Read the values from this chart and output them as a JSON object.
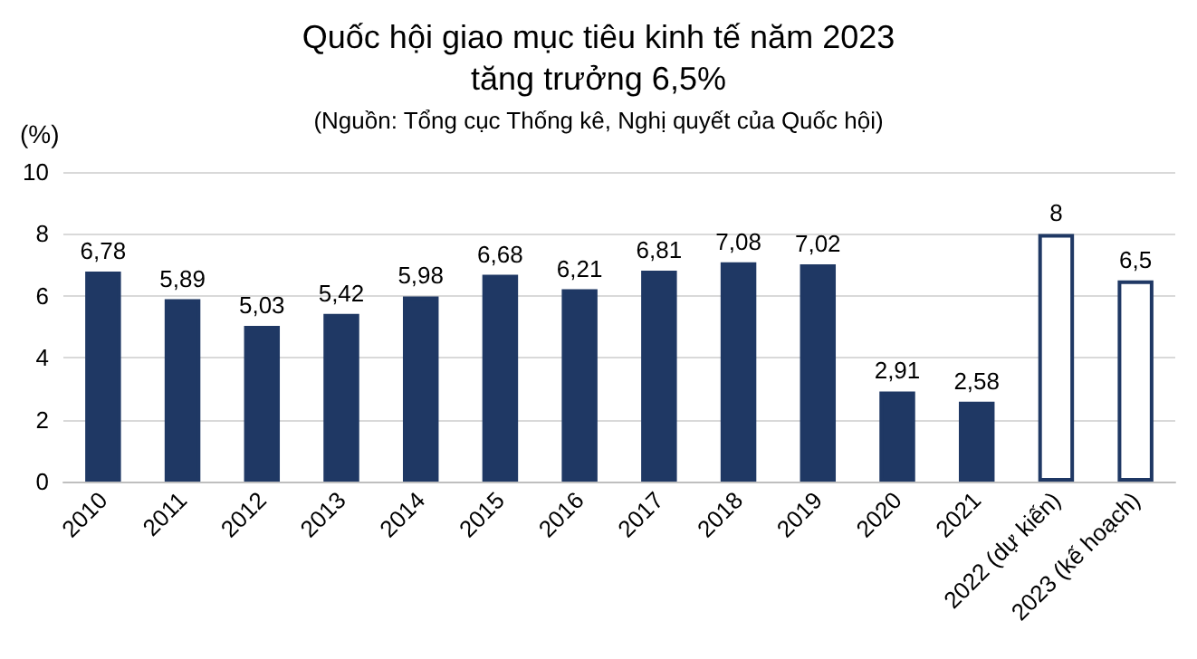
{
  "chart_data": {
    "type": "bar",
    "title": "Quốc hội giao mục tiêu kinh tế năm 2023\ntăng trưởng 6,5%",
    "subtitle": "(Nguồn: Tổng cục Thống kê, Nghị quyết của Quốc hội)",
    "ylabel": "(%)",
    "categories": [
      "2010",
      "2011",
      "2012",
      "2013",
      "2014",
      "2015",
      "2016",
      "2017",
      "2018",
      "2019",
      "2020",
      "2021",
      "2022 (dự kiến)",
      "2023 (kế hoạch)"
    ],
    "values": [
      6.78,
      5.89,
      5.03,
      5.42,
      5.98,
      6.68,
      6.21,
      6.81,
      7.08,
      7.02,
      2.91,
      2.58,
      8,
      6.5
    ],
    "value_labels": [
      "6,78",
      "5,89",
      "5,03",
      "5,42",
      "5,98",
      "6,68",
      "6,21",
      "6,81",
      "7,08",
      "7,02",
      "2,91",
      "2,58",
      "8",
      "6,5"
    ],
    "colors": [
      "#1f3864",
      "#1f3864",
      "#1f3864",
      "#1f3864",
      "#1f3864",
      "#1f3864",
      "#1f3864",
      "#1f3864",
      "#1f3864",
      "#1f3864",
      "#1f3864",
      "#1f3864",
      "#ffffff",
      "#ffffff"
    ],
    "ylim": [
      0,
      10
    ],
    "yticks": [
      0,
      2,
      4,
      6,
      8,
      10
    ],
    "grid": "y"
  }
}
